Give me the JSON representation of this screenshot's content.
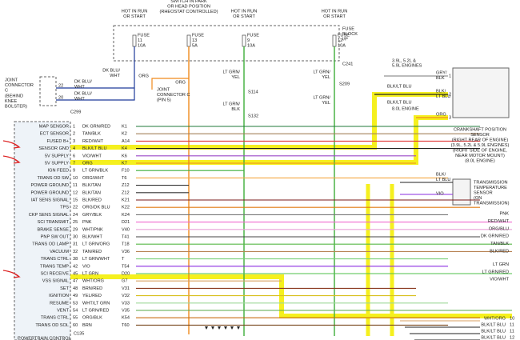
{
  "fuse_block": {
    "feeds": [
      {
        "hot": [
          "HOT IN RUN",
          "OR START"
        ],
        "fuse": [
          "FUSE",
          "11",
          "10A"
        ]
      },
      {
        "hot": [
          "HOT W/HEADLAMP",
          "SWITCH IN PARK",
          "OR HEAD POSITION",
          "(RHEOSTAT CONTROLLED)"
        ],
        "fuse": [
          "FUSE",
          "13",
          "5A"
        ]
      },
      {
        "hot": [
          "HOT IN RUN",
          "OR START"
        ],
        "fuse": [
          "FUSE",
          "9",
          "10A"
        ]
      },
      {
        "hot": [
          "HOT IN RUN",
          "OR START"
        ],
        "fuse": [
          "FUSE",
          "12",
          "10A"
        ]
      }
    ],
    "name": [
      "FUSE",
      "BLOCK",
      "I/P"
    ],
    "connector": "C241"
  },
  "joint_connector": {
    "name": [
      "JOINT",
      "CONNECTOR",
      "C"
    ],
    "location": [
      "(BEHIND",
      "KNEE",
      "BOLSTER)"
    ],
    "pins": [
      "22",
      "20"
    ],
    "wires": [
      [
        "DK BLU/",
        "WHT"
      ],
      [
        "DK BLU/",
        "WHT"
      ]
    ],
    "connector": "C299"
  },
  "wires": {
    "dk_blu_wht": [
      "DK BLU/",
      "WHT"
    ],
    "org_a": "ORG",
    "joint_ref": [
      "JOINT",
      "CONNECTOR C",
      "(PIN 5)"
    ],
    "org_b": "ORG",
    "lt_grn_yel_a": [
      "LT GRN/",
      "YEL"
    ],
    "s114": "S114",
    "lt_grn_blk": [
      "LT GRN/",
      "BLK"
    ],
    "s132": "S132",
    "lt_grn_yel_b": [
      "LT GRN/",
      "YEL"
    ],
    "s209": "S209",
    "lt_grn_yel_c": [
      "LT GRN/",
      "YEL"
    ]
  },
  "pcm": {
    "rows": [
      [
        "MAP SENSOR",
        "1",
        "DK GRN/RED",
        "K1"
      ],
      [
        "ECT SENSOR",
        "2",
        "TAN/BLK",
        "K2"
      ],
      [
        "FUSED B+",
        "3",
        "RED/WHT",
        "A14"
      ],
      [
        "SENSOR GND",
        "4",
        "BLK/LT BLU",
        "K4"
      ],
      [
        "5V SUPPLY",
        "6",
        "VIO/WHT",
        "K6"
      ],
      [
        "5V SUPPLY",
        "7",
        "ORG",
        "K7"
      ],
      [
        "IGN FEED",
        "9",
        "LT GRN/BLK",
        "F10"
      ],
      [
        "TRANS OD SW",
        "10",
        "ORG/WHT",
        "T6"
      ],
      [
        "POWER GROUND",
        "11",
        "BLK/TAN",
        "Z12"
      ],
      [
        "POWER GROUND",
        "12",
        "BLK/TAN",
        "Z12"
      ],
      [
        "IAT SENS SIGNAL",
        "15",
        "BLK/RED",
        "K21"
      ],
      [
        "TPS",
        "22",
        "ORG/DK BLU",
        "K22"
      ],
      [
        "CKP SENS SIGNAL",
        "24",
        "GRY/BLK",
        "K24"
      ],
      [
        "SCI TRANSMIT",
        "25",
        "PNK",
        "D21"
      ],
      [
        "BRAKE SENSE",
        "29",
        "WHT/PNK",
        "V40"
      ],
      [
        "PNP SW OUT",
        "30",
        "BLK/WHT",
        "T41"
      ],
      [
        "TRANS OD LAMP",
        "31",
        "LT GRN/ORG",
        "T18"
      ],
      [
        "VACUUM",
        "32",
        "TAN/RED",
        "V36"
      ],
      [
        "TRANS CTRL",
        "38",
        "LT GRN/WHT",
        "T"
      ],
      [
        "TRANS TEMP",
        "42",
        "VIO",
        "T54"
      ],
      [
        "SCI RECEIVE",
        "45",
        "LT GRN",
        "D20"
      ],
      [
        "VSS SIGNAL",
        "47",
        "WHT/ORG",
        "G7"
      ],
      [
        "SET",
        "48",
        "BRN/RED",
        "V31"
      ],
      [
        "IGNITION",
        "49",
        "YEL/RED",
        "V32"
      ],
      [
        "RESUME",
        "53",
        "WHT/LT GRN",
        "V33"
      ],
      [
        "VENT",
        "54",
        "LT GRN/RED",
        "V35"
      ],
      [
        "TRANS CTRL",
        "55",
        "ORG/BLK",
        "K54"
      ],
      [
        "TRANS OD SOL",
        "60",
        "BRN",
        "T60"
      ]
    ],
    "connector": "C135",
    "name": "POWERTRAIN CONTROL"
  },
  "ckp": {
    "engines_a": "3.9L, 5.2L &",
    "engines_b": "5.9L ENGINES",
    "pins": [
      {
        "wire": [
          "GRY/",
          "BLK"
        ],
        "pin": "1"
      },
      {
        "wire": [
          "BLK/",
          "LT BLU"
        ],
        "pin": "2"
      },
      {
        "wire": [
          "ORG"
        ],
        "pin": "3"
      }
    ],
    "feed_a": "BLK/LT BLU",
    "feed_b": "BLK/LT BLU",
    "engine_c": "8.0L ENGINE",
    "label": [
      "CRANKSHAFT POSITION",
      "SENSOR",
      "(RIGHT REAR OF ENGINE)",
      "(3.9L, 5.2L & 5.9L ENGINES)",
      "(RIGHT SIDE OF ENGINE,",
      "NEAR MOTOR MOUNT)",
      "(8.0L ENGINE)"
    ]
  },
  "tts": {
    "pins": [
      {
        "wire": [
          "BLK/",
          "LT BLU"
        ]
      },
      {
        "wire": [
          "VIO"
        ]
      }
    ],
    "label": [
      "TRANSMISSION",
      "TEMPERATURE",
      "SENSOR",
      "(ON",
      "TRANSMISSION)"
    ]
  },
  "right_labels": [
    "PNK",
    "RED/WHT",
    "ORG/BLU",
    "DK GRN/RED",
    "TAN/BLK",
    "BLK/RED",
    "LT GRN",
    "LT GRN/RED",
    "VIO/WHT"
  ],
  "bottom_right": [
    [
      "WHT/ORG",
      "10"
    ],
    [
      "BLK/LT BLU",
      "11"
    ],
    [
      "BLK/LT BLU",
      "11"
    ],
    [
      "BLK/LT BLU",
      "12"
    ]
  ]
}
